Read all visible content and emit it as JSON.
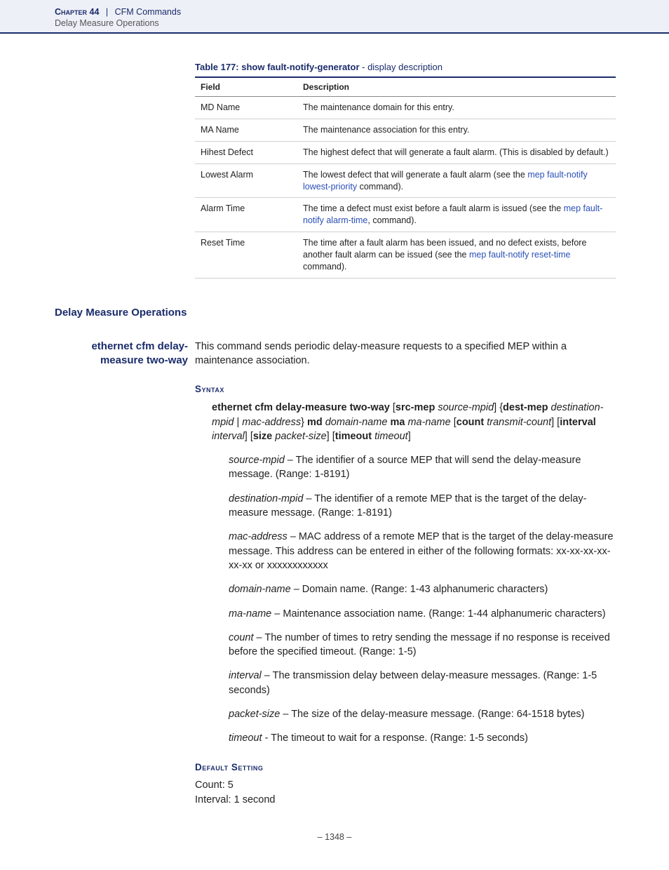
{
  "header": {
    "chapter": "Chapter 44",
    "section": "CFM Commands",
    "subsection": "Delay Measure Operations"
  },
  "table": {
    "caption_bold": "Table 177: show fault-notify-generator",
    "caption_rest": " - display description",
    "columns": [
      "Field",
      "Description"
    ],
    "rows": [
      {
        "field": "MD Name",
        "desc": "The maintenance domain for this entry."
      },
      {
        "field": "MA Name",
        "desc": "The maintenance association for this entry."
      },
      {
        "field": "Hihest Defect",
        "desc": "The highest defect that will generate a fault alarm. (This is disabled by default.)"
      },
      {
        "field": "Lowest Alarm",
        "desc_pre": "The lowest defect that will generate a fault alarm (see the ",
        "link": "mep fault-notify lowest-priority",
        "desc_post": " command)."
      },
      {
        "field": "Alarm Time",
        "desc_pre": "The time a defect must exist before a fault alarm is issued (see the ",
        "link": "mep fault-notify alarm-time",
        "desc_post": ", command)."
      },
      {
        "field": "Reset Time",
        "desc_pre": "The time after a fault alarm has been issued, and no defect exists, before another fault alarm can be issued (see the ",
        "link": "mep fault-notify reset-time",
        "desc_post": " command)."
      }
    ]
  },
  "section_heading": "Delay Measure Operations",
  "command": {
    "name_l1": "ethernet cfm delay-",
    "name_l2": "measure two-way",
    "intro": "This command sends periodic delay-measure requests to a specified MEP within a maintenance association.",
    "syntax_label": "Syntax",
    "syntax": {
      "p1": "ethernet cfm delay-measure two-way",
      "p2": " [",
      "p3": "src-mep",
      "p4": " ",
      "p5": "source-mpid",
      "p6": "]",
      "p7": " {",
      "p8": "dest-mep",
      "p9": " ",
      "p10": "destination-mpid",
      "p11": " | ",
      "p12": "mac-address",
      "p13": "} ",
      "p14": "md",
      "p15": " ",
      "p16": "domain-name",
      "p17": " ",
      "p18": "ma",
      "p19": " ",
      "p20": "ma-name",
      "p21": " [",
      "p22": "count",
      "p23": " ",
      "p24": "transmit-count",
      "p25": "] [",
      "p26": "interval",
      "p27": " ",
      "p28": "interval",
      "p29": "]",
      "p30": " [",
      "p31": "size",
      "p32": " ",
      "p33": "packet-size",
      "p34": "] [",
      "p35": "timeout",
      "p36": " ",
      "p37": "timeout",
      "p38": "]"
    },
    "params": [
      {
        "name": "source-mpid",
        "desc": " – The identifier of a source MEP that will send the delay-measure message. (Range: 1-8191)"
      },
      {
        "name": "destination-mpid",
        "desc": " – The identifier of a remote MEP that is the target of the delay-measure message. (Range: 1-8191)"
      },
      {
        "name": "mac-address",
        "desc": " – MAC address of a remote MEP that is the target of the delay-measure message. This address can be entered in either of the following formats: xx-xx-xx-xx-xx-xx or xxxxxxxxxxxx"
      },
      {
        "name": "domain-name",
        "desc": " – Domain name. (Range: 1-43 alphanumeric characters)"
      },
      {
        "name": "ma-name",
        "desc": " – Maintenance association name. (Range: 1-44 alphanumeric characters)"
      },
      {
        "name": "count",
        "desc": " – The number of times to retry sending the message if no response is received before the specified timeout. (Range: 1-5)"
      },
      {
        "name": "interval",
        "desc": " – The transmission delay between delay-measure messages. (Range: 1-5 seconds)"
      },
      {
        "name": "packet-size",
        "desc": " – The size of the delay-measure message. (Range: 64-1518 bytes)"
      },
      {
        "name": "timeout",
        "desc": " - The timeout to wait for a response. (Range: 1-5 seconds)"
      }
    ],
    "default_label": "Default Setting",
    "defaults": [
      "Count: 5",
      "Interval: 1 second"
    ]
  },
  "footer": "–  1348  –"
}
